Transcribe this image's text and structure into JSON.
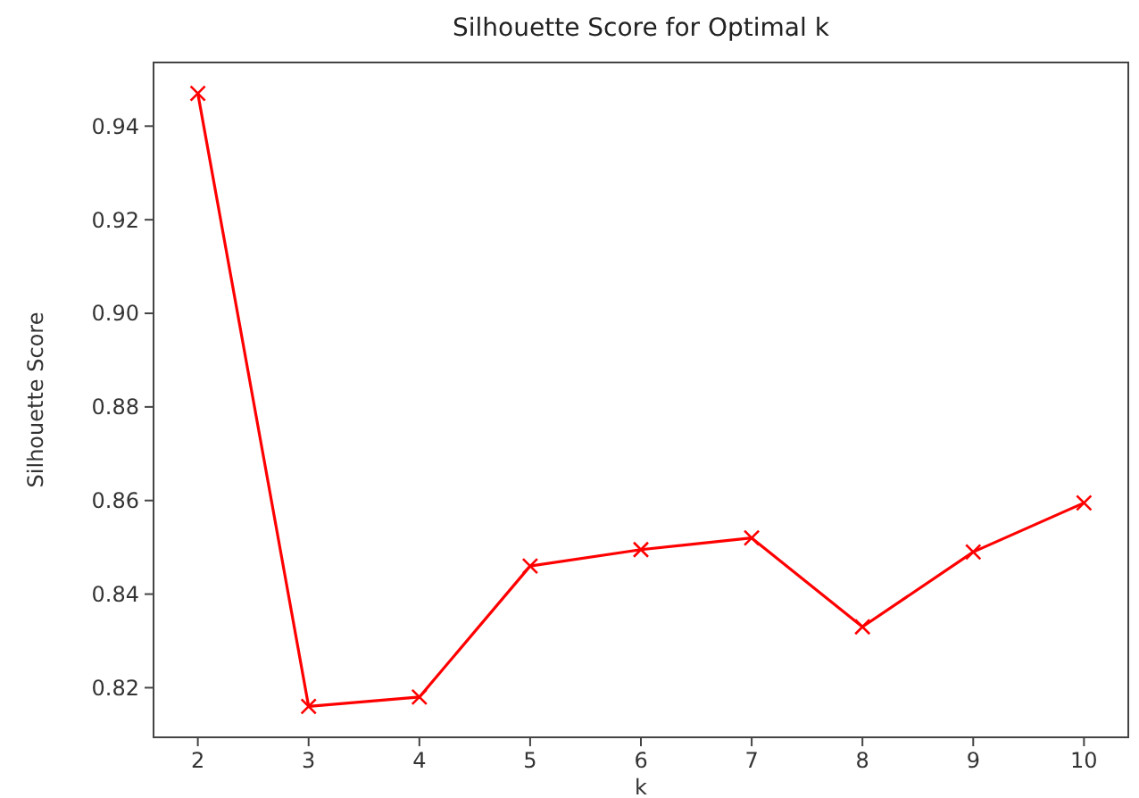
{
  "chart_data": {
    "type": "line",
    "title": "Silhouette Score for Optimal k",
    "xlabel": "k",
    "ylabel": "Silhouette Score",
    "x": [
      2,
      3,
      4,
      5,
      6,
      7,
      8,
      9,
      10
    ],
    "series": [
      {
        "color": "#ff0000",
        "values": [
          0.947,
          0.816,
          0.818,
          0.846,
          0.8495,
          0.852,
          0.833,
          0.849,
          0.8595
        ]
      }
    ],
    "xlim": [
      1.6,
      10.4
    ],
    "xticks": [
      2,
      3,
      4,
      5,
      6,
      7,
      8,
      9,
      10
    ],
    "ylim": [
      0.8094,
      0.9536
    ],
    "yticks": [
      {
        "value": 0.82,
        "label": "0.82"
      },
      {
        "value": 0.84,
        "label": "0.84"
      },
      {
        "value": 0.86,
        "label": "0.86"
      },
      {
        "value": 0.88,
        "label": "0.88"
      },
      {
        "value": 0.9,
        "label": "0.90"
      },
      {
        "value": 0.92,
        "label": "0.92"
      },
      {
        "value": 0.94,
        "label": "0.94"
      }
    ],
    "marker": "cross",
    "grid": false
  }
}
